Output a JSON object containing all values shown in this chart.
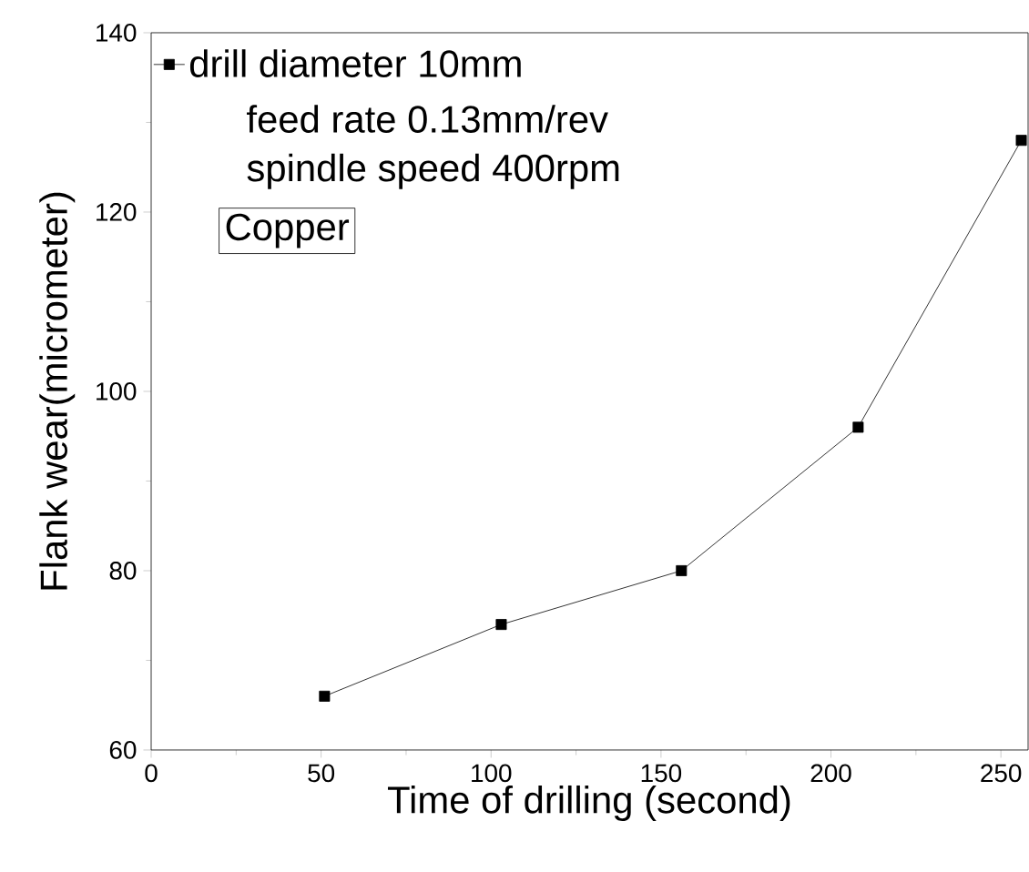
{
  "chart_data": {
    "type": "line",
    "xlabel": "Time of drilling (second)",
    "ylabel": "Flank wear(micrometer)",
    "x": [
      51,
      103,
      156,
      208,
      256
    ],
    "series": [
      {
        "name": "drill diameter 10mm",
        "color": "#000000",
        "values": [
          66,
          74,
          80,
          96,
          128
        ]
      }
    ],
    "xlim": [
      0,
      258
    ],
    "ylim": [
      60,
      140
    ],
    "xticks": [
      0,
      50,
      100,
      150,
      200,
      250
    ],
    "yticks": [
      60,
      80,
      100,
      120,
      140
    ],
    "marker": "square",
    "line_style": "solid",
    "legend": "top left",
    "grid": false,
    "annotations": [
      "feed rate 0.13mm/rev",
      "spindle speed 400rpm",
      "Copper"
    ]
  }
}
